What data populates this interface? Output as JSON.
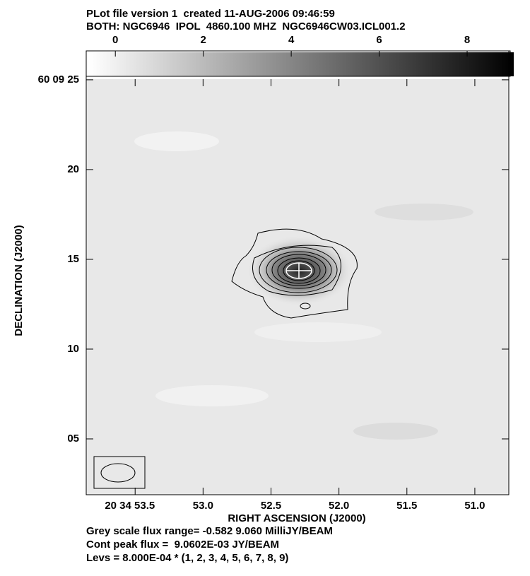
{
  "chart_data": {
    "type": "image",
    "title": "PLot file version 1  created 11-AUG-2006 09:46:59",
    "subtitle": "BOTH: NGC6946  IPOL  4860.100 MHZ  NGC6946CW03.ICL001.2",
    "xlabel": "RIGHT ASCENSION (J2000)",
    "ylabel": "DECLINATION (J2000)",
    "xlim": [
      53.86,
      50.75
    ],
    "xticks": [
      {
        "value": 53.5,
        "label": "20 34 53.5"
      },
      {
        "value": 53.0,
        "label": "53.0"
      },
      52.5,
      {
        "value": 52.0,
        "label": "52.0"
      },
      51.5,
      {
        "value": 51.0,
        "label": "51.0"
      }
    ],
    "ylim": [
      1.89,
      26.61
    ],
    "yticks": [
      {
        "value": 25,
        "label": "60 09 25"
      },
      20,
      15,
      10,
      {
        "value": 5,
        "label": "05"
      }
    ],
    "colorbar": {
      "lim": [
        -0.582,
        9.06
      ],
      "ticks": [
        0,
        2,
        4,
        6,
        8
      ]
    },
    "notes": [
      "Grey scale flux range= -0.582 9.060 MilliJY/BEAM",
      "Cont peak flux =  9.0602E-03 JY/BEAM",
      "Levs = 8.000E-04 * (1, 2, 3, 4, 5, 6, 7, 8, 9)"
    ]
  }
}
